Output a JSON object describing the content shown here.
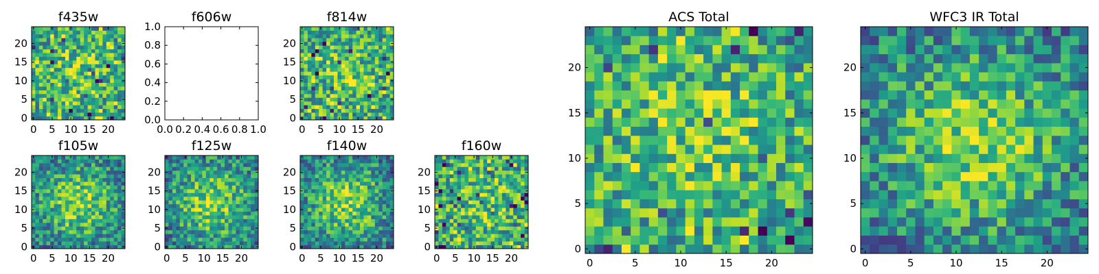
{
  "colormap": "viridis",
  "colors": {
    "frame": "#000000",
    "background": "#ffffff"
  },
  "chart_data": [
    {
      "type": "heatmap",
      "title": "f435w",
      "xlim": [
        -0.5,
        24.5
      ],
      "ylim": [
        -0.5,
        24.5
      ],
      "xticks": [
        "0",
        "5",
        "10",
        "15",
        "20"
      ],
      "yticks": [
        "0",
        "5",
        "10",
        "15",
        "20"
      ],
      "pattern": "noisy",
      "seed": 11
    },
    {
      "type": "empty",
      "title": "f606w",
      "xlim": [
        0,
        1
      ],
      "ylim": [
        0,
        1
      ],
      "xticks": [
        "0.0",
        "0.2",
        "0.4",
        "0.6",
        "0.8",
        "1.0"
      ],
      "yticks": [
        "0.0",
        "0.2",
        "0.4",
        "0.6",
        "0.8",
        "1.0"
      ]
    },
    {
      "type": "heatmap",
      "title": "f814w",
      "xlim": [
        -0.5,
        24.5
      ],
      "ylim": [
        -0.5,
        24.5
      ],
      "xticks": [
        "0",
        "5",
        "10",
        "15",
        "20"
      ],
      "yticks": [
        "0",
        "5",
        "10",
        "15",
        "20"
      ],
      "pattern": "noisy",
      "seed": 23
    },
    {
      "type": "heatmap",
      "title": "f105w",
      "xlim": [
        -0.5,
        24.5
      ],
      "ylim": [
        -0.5,
        24.5
      ],
      "xticks": [
        "0",
        "5",
        "10",
        "15",
        "20"
      ],
      "yticks": [
        "0",
        "5",
        "10",
        "15",
        "20"
      ],
      "pattern": "centered",
      "seed": 37
    },
    {
      "type": "heatmap",
      "title": "f125w",
      "xlim": [
        -0.5,
        24.5
      ],
      "ylim": [
        -0.5,
        24.5
      ],
      "xticks": [
        "0",
        "5",
        "10",
        "15",
        "20"
      ],
      "yticks": [
        "0",
        "5",
        "10",
        "15",
        "20"
      ],
      "pattern": "centered",
      "seed": 41
    },
    {
      "type": "heatmap",
      "title": "f140w",
      "xlim": [
        -0.5,
        24.5
      ],
      "ylim": [
        -0.5,
        24.5
      ],
      "xticks": [
        "0",
        "5",
        "10",
        "15",
        "20"
      ],
      "yticks": [
        "0",
        "5",
        "10",
        "15",
        "20"
      ],
      "pattern": "centered",
      "seed": 53
    },
    {
      "type": "heatmap",
      "title": "f160w",
      "xlim": [
        -0.5,
        24.5
      ],
      "ylim": [
        -0.5,
        24.5
      ],
      "xticks": [
        "0",
        "5",
        "10",
        "15",
        "20"
      ],
      "yticks": [
        "0",
        "5",
        "10",
        "15",
        "20"
      ],
      "pattern": "noisy",
      "seed": 67
    },
    {
      "type": "heatmap",
      "title": "ACS Total",
      "xlim": [
        -0.5,
        24.5
      ],
      "ylim": [
        -0.5,
        24.5
      ],
      "xticks": [
        "0",
        "5",
        "10",
        "15",
        "20"
      ],
      "yticks": [
        "0",
        "5",
        "10",
        "15",
        "20"
      ],
      "pattern": "noisy",
      "seed": 79
    },
    {
      "type": "heatmap",
      "title": "WFC3 IR Total",
      "xlim": [
        -0.5,
        24.5
      ],
      "ylim": [
        -0.5,
        24.5
      ],
      "xticks": [
        "0",
        "5",
        "10",
        "15",
        "20"
      ],
      "yticks": [
        "0",
        "5",
        "10",
        "15",
        "20"
      ],
      "pattern": "centered",
      "seed": 97
    }
  ]
}
